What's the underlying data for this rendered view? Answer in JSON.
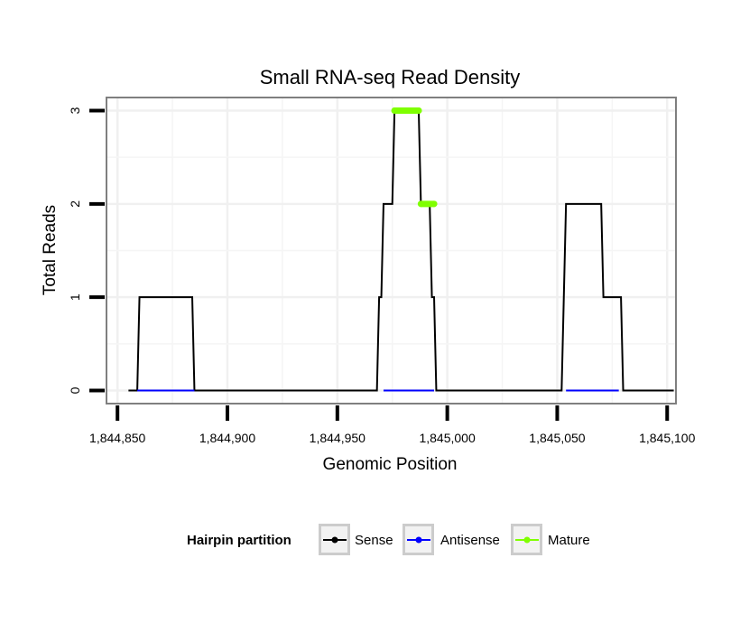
{
  "chart_data": {
    "type": "line",
    "title": "Small RNA-seq Read Density",
    "xlabel": "Genomic Position",
    "ylabel": "Total Reads",
    "xlim": [
      1844845,
      1845104
    ],
    "ylim": [
      -0.14,
      3.14
    ],
    "x_ticks": [
      1844850,
      1844900,
      1844950,
      1845000,
      1845050,
      1845100
    ],
    "x_tick_labels": [
      "1,844,850",
      "1,844,900",
      "1,844,950",
      "1,845,000",
      "1,845,050",
      "1,845,100"
    ],
    "y_ticks": [
      0,
      1,
      2,
      3
    ],
    "y_tick_labels": [
      "0",
      "1",
      "2",
      "3"
    ],
    "grid": true,
    "legend": {
      "title": "Hairpin partition",
      "position": "bottom",
      "entries": [
        "Sense",
        "Antisense",
        "Mature"
      ]
    },
    "series": [
      {
        "name": "Sense",
        "color": "#000000",
        "x": [
          1844855,
          1844859,
          1844860,
          1844861,
          1844884,
          1844885,
          1844886,
          1844968,
          1844969,
          1844970,
          1844971,
          1844975,
          1844976,
          1844977,
          1844987,
          1844988,
          1844992,
          1844993,
          1844994,
          1844995,
          1844996,
          1845052,
          1845053,
          1845054,
          1845070,
          1845071,
          1845079,
          1845080,
          1845081,
          1845103
        ],
        "values": [
          0,
          0,
          1,
          1,
          1,
          0,
          0,
          0,
          1,
          1,
          2,
          2,
          3,
          3,
          3,
          2,
          2,
          1,
          1,
          0,
          0,
          0,
          1,
          2,
          2,
          1,
          1,
          0,
          0,
          0
        ]
      },
      {
        "name": "Antisense",
        "color": "#0000ff",
        "x": [
          1844859,
          1844885,
          1844971,
          1844994,
          1845054,
          1845078
        ],
        "values": [
          0,
          0,
          0,
          0,
          0,
          0
        ],
        "segments": [
          [
            0,
            1
          ],
          [
            2,
            3
          ],
          [
            4,
            5
          ]
        ]
      },
      {
        "name": "Mature",
        "color": "#7fff00",
        "x": [
          1844976,
          1844987,
          1844988,
          1844994
        ],
        "values": [
          3,
          3,
          2,
          2
        ],
        "segments": [
          [
            0,
            1
          ],
          [
            2,
            3
          ]
        ]
      }
    ]
  }
}
